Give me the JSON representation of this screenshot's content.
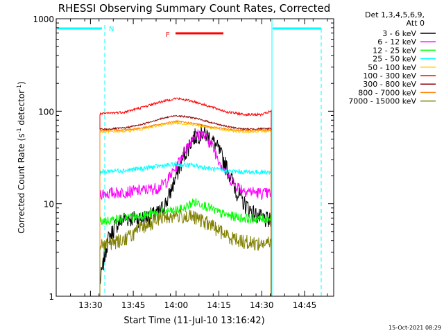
{
  "chart_data": {
    "type": "line",
    "title": "RHESSI Observing Summary Count Rates, Corrected",
    "xlabel": "Start Time (11-Jul-10 13:16:42)",
    "ylabel": "Corrected Count Rate (s",
    "ylabel_sup": "-1",
    "ylabel_mid": " detector",
    "ylabel_sup2": "-1",
    "ylabel_end": ")",
    "yscale": "log",
    "ylim": [
      1,
      1000
    ],
    "xlim_minutes": [
      13.3,
      14.92
    ],
    "xticks": [
      {
        "minute": 13.5,
        "label": "13:30"
      },
      {
        "minute": 13.75,
        "label": "13:45"
      },
      {
        "minute": 14.0,
        "label": "14:00"
      },
      {
        "minute": 14.25,
        "label": "14:15"
      },
      {
        "minute": 14.5,
        "label": "14:30"
      },
      {
        "minute": 14.75,
        "label": "14:45"
      }
    ],
    "yticks": [
      {
        "value": 1,
        "label": "1"
      },
      {
        "value": 10,
        "label": "10"
      },
      {
        "value": 100,
        "label": "100"
      },
      {
        "value": 1000,
        "label": "1000"
      }
    ],
    "legend_header": [
      "Det 1,3,4,5,6,9,",
      "Att 0"
    ],
    "series": [
      {
        "name": "3 - 6 keV",
        "color": "#000000",
        "points": [
          [
            13.555,
            1.4
          ],
          [
            13.6,
            4
          ],
          [
            13.65,
            6
          ],
          [
            13.7,
            7
          ],
          [
            13.8,
            7
          ],
          [
            13.9,
            8
          ],
          [
            13.95,
            11
          ],
          [
            14.0,
            20
          ],
          [
            14.05,
            35
          ],
          [
            14.1,
            52
          ],
          [
            14.15,
            60
          ],
          [
            14.2,
            52
          ],
          [
            14.25,
            38
          ],
          [
            14.3,
            24
          ],
          [
            14.35,
            14
          ],
          [
            14.4,
            10
          ],
          [
            14.45,
            8
          ],
          [
            14.5,
            7
          ],
          [
            14.555,
            6.5
          ]
        ]
      },
      {
        "name": "6 - 12 keV",
        "color": "#ff00ff",
        "points": [
          [
            13.555,
            13
          ],
          [
            13.6,
            13
          ],
          [
            13.7,
            13.5
          ],
          [
            13.8,
            14
          ],
          [
            13.9,
            15
          ],
          [
            13.95,
            18
          ],
          [
            14.0,
            25
          ],
          [
            14.05,
            38
          ],
          [
            14.1,
            54
          ],
          [
            14.15,
            58
          ],
          [
            14.2,
            46
          ],
          [
            14.25,
            30
          ],
          [
            14.3,
            20
          ],
          [
            14.35,
            16
          ],
          [
            14.4,
            14
          ],
          [
            14.5,
            13
          ],
          [
            14.555,
            13
          ]
        ]
      },
      {
        "name": "12 - 25 keV",
        "color": "#00ff00",
        "points": [
          [
            13.555,
            6.5
          ],
          [
            13.6,
            6.6
          ],
          [
            13.7,
            7
          ],
          [
            13.8,
            7.5
          ],
          [
            13.9,
            8
          ],
          [
            14.0,
            8.5
          ],
          [
            14.05,
            9
          ],
          [
            14.1,
            10.5
          ],
          [
            14.15,
            10
          ],
          [
            14.2,
            9
          ],
          [
            14.25,
            8
          ],
          [
            14.3,
            7.5
          ],
          [
            14.4,
            7
          ],
          [
            14.5,
            6.8
          ],
          [
            14.555,
            7
          ]
        ]
      },
      {
        "name": "25 - 50 keV",
        "color": "#00ffff",
        "points": [
          [
            13.555,
            22
          ],
          [
            13.6,
            22.5
          ],
          [
            13.7,
            23
          ],
          [
            13.8,
            24
          ],
          [
            13.9,
            25.5
          ],
          [
            14.0,
            26.5
          ],
          [
            14.1,
            26
          ],
          [
            14.2,
            24
          ],
          [
            14.3,
            22.5
          ],
          [
            14.4,
            22
          ],
          [
            14.555,
            22
          ]
        ]
      },
      {
        "name": "50 - 100 keV",
        "color": "#ffcc00",
        "points": [
          [
            13.555,
            60
          ],
          [
            13.6,
            60
          ],
          [
            13.7,
            61
          ],
          [
            13.8,
            64
          ],
          [
            13.9,
            70
          ],
          [
            14.0,
            75
          ],
          [
            14.1,
            72
          ],
          [
            14.2,
            66
          ],
          [
            14.3,
            62
          ],
          [
            14.4,
            60
          ],
          [
            14.555,
            61
          ]
        ]
      },
      {
        "name": "100 - 300 keV",
        "color": "#ff0000",
        "points": [
          [
            13.555,
            93
          ],
          [
            13.6,
            95
          ],
          [
            13.7,
            98
          ],
          [
            13.8,
            110
          ],
          [
            13.9,
            125
          ],
          [
            14.0,
            138
          ],
          [
            14.1,
            128
          ],
          [
            14.2,
            112
          ],
          [
            14.3,
            98
          ],
          [
            14.4,
            92
          ],
          [
            14.5,
            92
          ],
          [
            14.555,
            100
          ]
        ]
      },
      {
        "name": "300 - 800 keV",
        "color": "#8b0000",
        "points": [
          [
            13.555,
            64
          ],
          [
            13.6,
            64
          ],
          [
            13.7,
            66
          ],
          [
            13.8,
            72
          ],
          [
            13.9,
            82
          ],
          [
            14.0,
            90
          ],
          [
            14.1,
            85
          ],
          [
            14.2,
            76
          ],
          [
            14.3,
            68
          ],
          [
            14.4,
            64
          ],
          [
            14.555,
            65
          ]
        ]
      },
      {
        "name": "800 - 7000 keV",
        "color": "#ff8000",
        "points": [
          [
            13.555,
            62
          ],
          [
            13.6,
            62
          ],
          [
            13.7,
            63
          ],
          [
            13.8,
            66
          ],
          [
            13.9,
            72
          ],
          [
            14.0,
            78
          ],
          [
            14.1,
            74
          ],
          [
            14.2,
            68
          ],
          [
            14.3,
            64
          ],
          [
            14.4,
            62
          ],
          [
            14.555,
            63
          ]
        ]
      },
      {
        "name": "7000 - 15000 keV",
        "color": "#808000",
        "points": [
          [
            13.555,
            3.7
          ],
          [
            13.6,
            3.7
          ],
          [
            13.7,
            4.2
          ],
          [
            13.8,
            5.5
          ],
          [
            13.9,
            7
          ],
          [
            14.0,
            7.5
          ],
          [
            14.1,
            7.2
          ],
          [
            14.2,
            6
          ],
          [
            14.3,
            4.5
          ],
          [
            14.4,
            3.9
          ],
          [
            14.5,
            3.7
          ],
          [
            14.555,
            3.8
          ]
        ]
      }
    ],
    "night_labels": [
      "N"
    ],
    "flare_label": "F",
    "colors": {
      "night": "#00ffff",
      "flare": "#ff0000"
    }
  },
  "footer": {
    "timestamp": "15-Oct-2021 08:29"
  }
}
